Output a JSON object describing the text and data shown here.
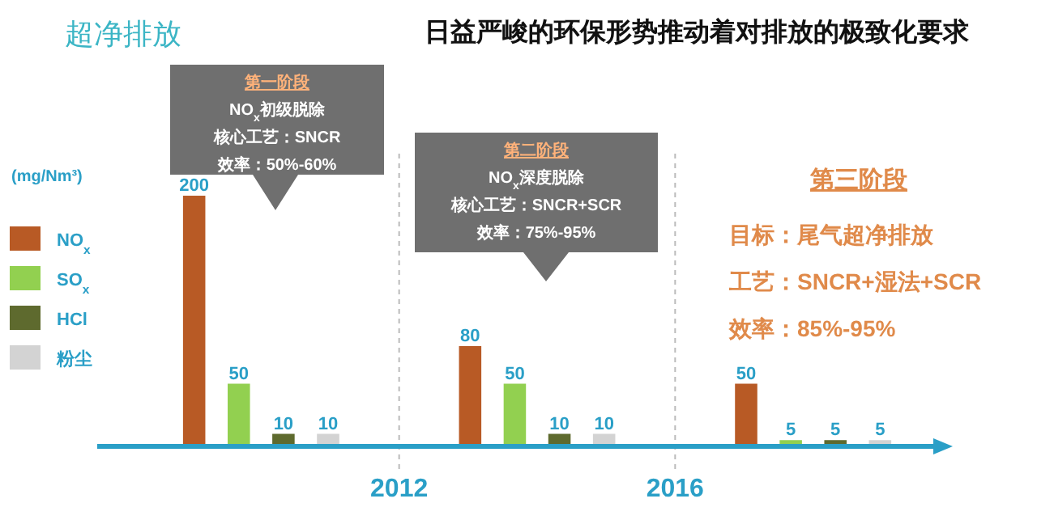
{
  "chart_data": {
    "type": "bar",
    "title": "日益严峻的环保形势推动着对排放的极致化要求",
    "subtitle": "超净排放",
    "ylabel": "(mg/Nm³)",
    "categories": [
      null,
      null,
      null
    ],
    "series": [
      {
        "name": "NO$_{x}$",
        "color": "#b85a25",
        "values": [
          200,
          80,
          50
        ]
      },
      {
        "name": "SO$_{x}$",
        "color": "#92d050",
        "values": [
          50,
          50,
          5
        ]
      },
      {
        "name": "HCl",
        "color": "#5e6a2e",
        "values": [
          10,
          10,
          5
        ]
      },
      {
        "name": "粉尘",
        "color": "#d3d3d3",
        "values": [
          10,
          10,
          5
        ]
      }
    ],
    "ylim": [
      0,
      200
    ],
    "data_labels": true,
    "legend": "left",
    "annotations": [
      "第一阶段",
      "NO$_{x}$初级脱除",
      "核心工艺：SNCR",
      "效率：50%-60%",
      "第二阶段",
      "NO$_{x}$深度脱除",
      "核心工艺：SNCR+SCR",
      "效率：75%-95%",
      "第三阶段",
      "目标：尾气超净排放",
      "工艺：SNCR+湿法+SCR",
      "效率：85%-95%",
      "2012",
      "2016"
    ]
  }
}
